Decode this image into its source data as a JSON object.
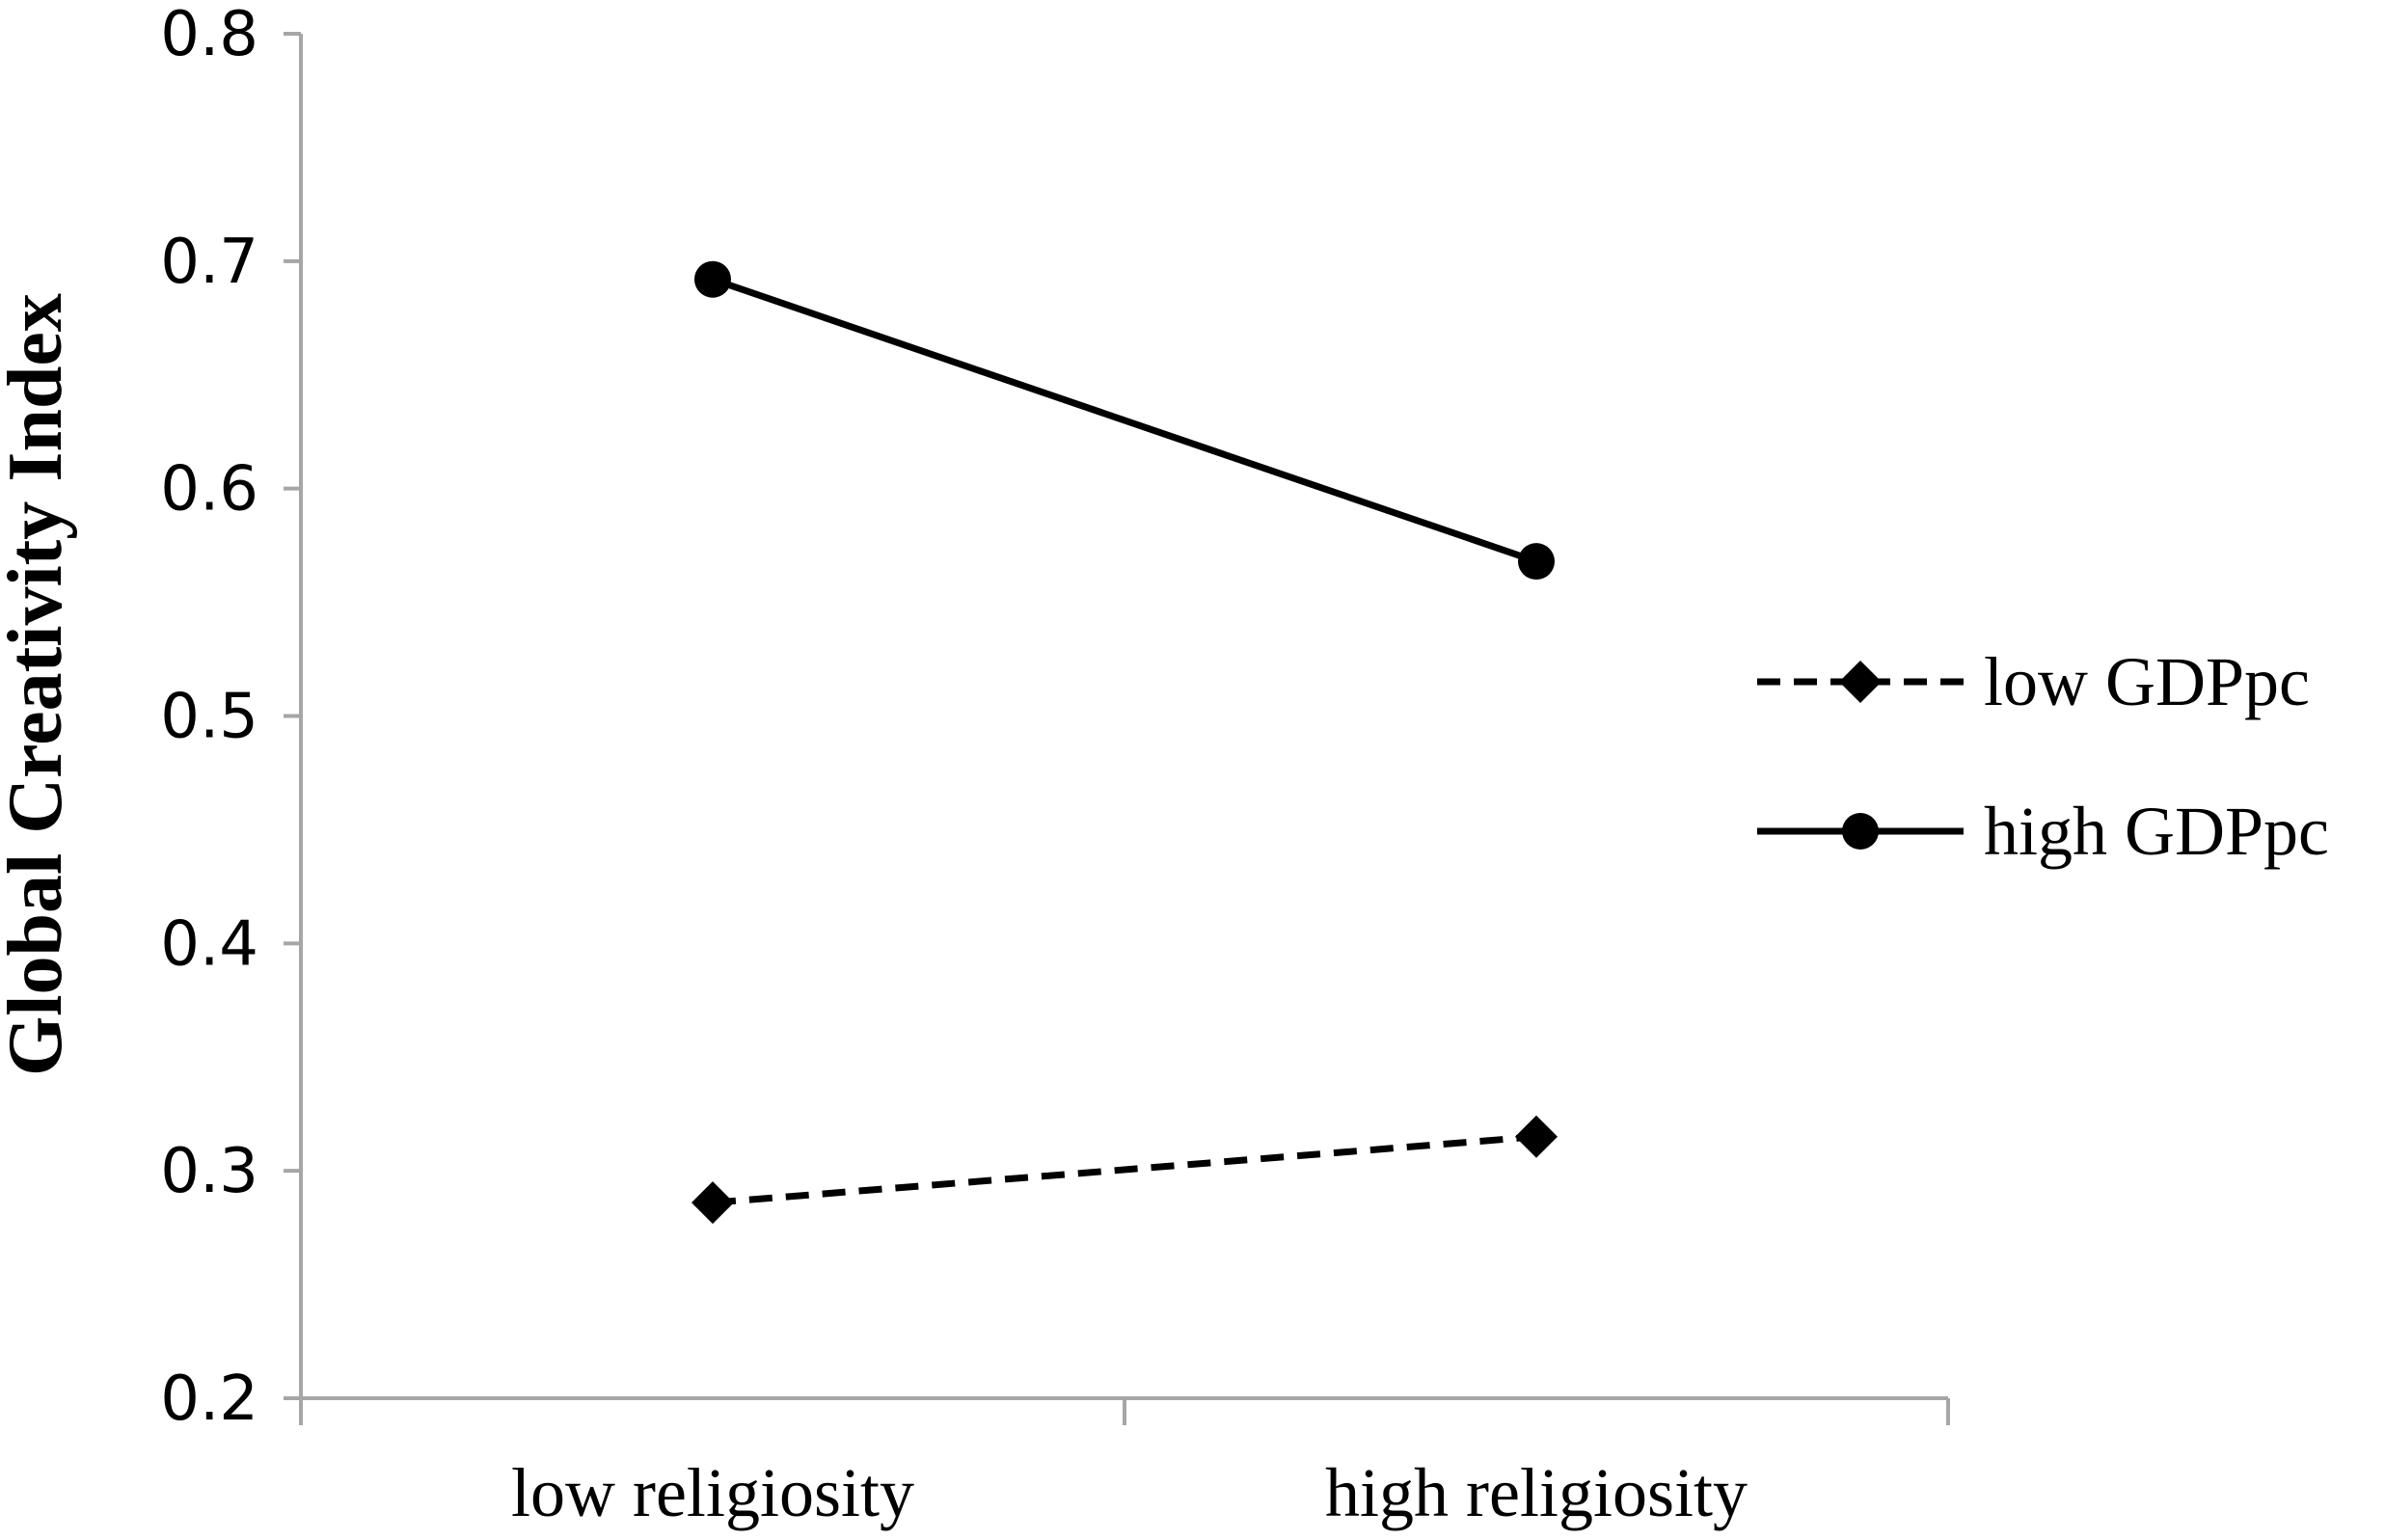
{
  "chart_data": {
    "type": "line",
    "title": "",
    "xlabel": "",
    "ylabel": "Global Creativity Index",
    "categories": [
      "low religiosity",
      "high religiosity"
    ],
    "ylim": [
      0.2,
      0.8
    ],
    "yticks": [
      "0.2",
      "0.3",
      "0.4",
      "0.5",
      "0.6",
      "0.7",
      "0.8"
    ],
    "grid": false,
    "legend_position": "right",
    "series": [
      {
        "name": "low GDPpc",
        "values": [
          0.286,
          0.315
        ],
        "line_style": "dashed",
        "marker": "diamond",
        "color": "#000000"
      },
      {
        "name": "high GDPpc",
        "values": [
          0.692,
          0.568
        ],
        "line_style": "solid",
        "marker": "circle",
        "color": "#000000"
      }
    ],
    "axis_color": "#a6a6a6"
  }
}
